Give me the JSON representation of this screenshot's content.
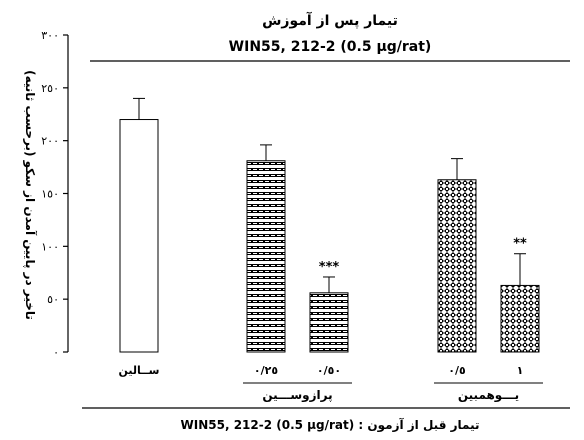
{
  "chart_data": {
    "type": "bar",
    "title": "تیمار پس از آموزش",
    "subtitle": "WIN55, 212-2 (0.5 µg/rat)",
    "ylabel": "تاخیر در پایین آمدن از سکو (برحسب ثانیه)",
    "xlabel": "WIN55, 212-2 (0.5 µg/rat) : تیمار قبل از آزمون",
    "ylim": [
      0,
      300
    ],
    "yticks": [
      {
        "value": 0,
        "label": "٠"
      },
      {
        "value": 50,
        "label": "٥٠"
      },
      {
        "value": 100,
        "label": "١٠٠"
      },
      {
        "value": 150,
        "label": "١٥٠"
      },
      {
        "value": 200,
        "label": "٢٠٠"
      },
      {
        "value": 250,
        "label": "٢٥٠"
      },
      {
        "value": 300,
        "label": "٣٠٠"
      }
    ],
    "groups": [
      {
        "name": "",
        "bars": [
          {
            "label": "ســالین",
            "value": 220,
            "err": 20,
            "pattern": "white",
            "sig": ""
          }
        ]
      },
      {
        "name": "پرازوســـین",
        "bars": [
          {
            "label": "٠/٢٥",
            "value": 181,
            "err": 15,
            "pattern": "brick",
            "sig": ""
          },
          {
            "label": "٠/٥٠",
            "value": 56,
            "err": 15,
            "pattern": "brick",
            "sig": "***"
          }
        ]
      },
      {
        "name": "یـــوهمبین",
        "bars": [
          {
            "label": "٠/٥",
            "value": 163,
            "err": 20,
            "pattern": "diamond",
            "sig": ""
          },
          {
            "label": "١",
            "value": 63,
            "err": 30,
            "pattern": "diamond",
            "sig": "**"
          }
        ]
      }
    ],
    "grid": false
  }
}
